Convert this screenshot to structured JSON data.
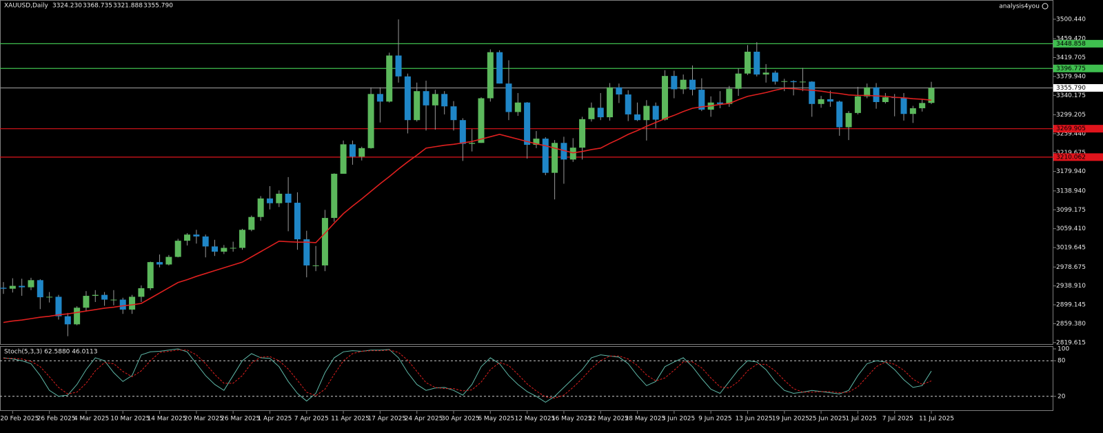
{
  "watermark": "analysis4you",
  "chart_data": [
    {
      "type": "candlestick",
      "title": "XAUUSD,Daily",
      "ohlc_labels": [
        "3324.230",
        "3368.735",
        "3321.888",
        "3355.790"
      ],
      "categories": [
        null,
        "20 Feb 2025",
        null,
        null,
        null,
        "26 Feb 2025",
        null,
        null,
        null,
        "4 Mar 2025",
        null,
        null,
        null,
        "10 Mar 2025",
        null,
        null,
        null,
        "14 Mar 2025",
        null,
        null,
        null,
        "20 Mar 2025",
        null,
        null,
        null,
        "26 Mar 2025",
        null,
        null,
        null,
        "1 Apr 2025",
        null,
        null,
        null,
        "7 Apr 2025",
        null,
        null,
        null,
        "11 Apr 2025",
        null,
        null,
        null,
        "17 Apr 2025",
        null,
        null,
        null,
        "24 Apr 2025",
        null,
        null,
        null,
        "30 Apr 2025",
        null,
        null,
        null,
        "6 May 2025",
        null,
        null,
        null,
        "12 May 2025",
        null,
        null,
        null,
        "16 May 2025",
        null,
        null,
        null,
        "22 May 2025",
        null,
        null,
        null,
        "28 May 2025",
        null,
        null,
        null,
        "3 Jun 2025",
        null,
        null,
        null,
        "9 Jun 2025",
        null,
        null,
        null,
        "13 Jun 2025",
        null,
        null,
        null,
        "19 Jun 2025",
        null,
        null,
        null,
        "25 Jun 2025",
        null,
        null,
        null,
        "1 Jul 2025",
        null,
        null,
        null,
        "7 Jul 2025",
        null,
        null,
        null,
        "11 Jul 2025"
      ],
      "open": [
        2935,
        2933,
        2939,
        2936,
        2951,
        2915,
        2916,
        2875,
        2858,
        2893,
        2918,
        2920,
        2910,
        2910,
        2889,
        2916,
        2934,
        2989,
        2984,
        3000,
        3034,
        3047,
        3043,
        3022,
        3011,
        3019,
        3019,
        3057,
        3084,
        3123,
        3113,
        3133,
        3114,
        3037,
        2982,
        2982,
        3082,
        3175,
        3237,
        3211,
        3229,
        3343,
        3327,
        3424,
        3380,
        3288,
        3349,
        3319,
        3343,
        3317,
        3288,
        3238,
        3240,
        3334,
        3431,
        3365,
        3305,
        3325,
        3236,
        3249,
        3177,
        3240,
        3205,
        3230,
        3290,
        3314,
        3294,
        3357,
        3342,
        3300,
        3288,
        3318,
        3289,
        3381,
        3353,
        3373,
        3352,
        3310,
        3325,
        3322,
        3354,
        3386,
        3432,
        3384,
        3388,
        3369,
        3370,
        3368,
        3369,
        3322,
        3332,
        3327,
        3273,
        3303,
        3338,
        3357,
        3326,
        3336,
        3335,
        3301,
        3313,
        3324.23
      ],
      "high": [
        2947,
        2955,
        2954,
        2956,
        2953,
        2926,
        2920,
        2882,
        2896,
        2928,
        2930,
        2926,
        2930,
        2914,
        2920,
        2940,
        2990,
        3005,
        3004,
        3038,
        3050,
        3057,
        3047,
        3036,
        3025,
        3032,
        3059,
        3087,
        3128,
        3149,
        3140,
        3168,
        3136,
        3055,
        3023,
        3099,
        3176,
        3245,
        3245,
        3232,
        3357,
        3357,
        3430,
        3500,
        3386,
        3367,
        3371,
        3352,
        3349,
        3328,
        3292,
        3269,
        3336,
        3437,
        3435,
        3414,
        3345,
        3326,
        3265,
        3252,
        3246,
        3253,
        3250,
        3295,
        3325,
        3345,
        3366,
        3365,
        3351,
        3325,
        3330,
        3325,
        3393,
        3392,
        3384,
        3403,
        3376,
        3338,
        3349,
        3360,
        3397,
        3446,
        3452,
        3406,
        3392,
        3375,
        3372,
        3398,
        3370,
        3339,
        3350,
        3329,
        3307,
        3358,
        3365,
        3366,
        3345,
        3343,
        3345,
        3318,
        3331,
        3368.735
      ],
      "low": [
        2922,
        2925,
        2918,
        2930,
        2890,
        2904,
        2868,
        2833,
        2856,
        2885,
        2905,
        2897,
        2898,
        2880,
        2880,
        2905,
        2930,
        2978,
        2982,
        2999,
        3024,
        3028,
        2999,
        3002,
        3006,
        3011,
        3015,
        3054,
        3076,
        3100,
        3105,
        3054,
        3015,
        2957,
        2970,
        2970,
        3074,
        3175,
        3194,
        3203,
        3228,
        3283,
        3325,
        3367,
        3260,
        3285,
        3266,
        3268,
        3300,
        3266,
        3202,
        3222,
        3240,
        3327,
        3365,
        3288,
        3297,
        3207,
        3229,
        3172,
        3121,
        3154,
        3200,
        3205,
        3285,
        3288,
        3287,
        3324,
        3286,
        3286,
        3245,
        3271,
        3287,
        3334,
        3343,
        3340,
        3307,
        3295,
        3313,
        3316,
        3339,
        3383,
        3380,
        3367,
        3363,
        3349,
        3340,
        3349,
        3295,
        3314,
        3316,
        3255,
        3246,
        3300,
        3334,
        3312,
        3323,
        3296,
        3287,
        3282,
        3306,
        3321.888
      ],
      "close": [
        2933,
        2939,
        2936,
        2951,
        2915,
        2916,
        2875,
        2858,
        2893,
        2918,
        2920,
        2910,
        2910,
        2889,
        2916,
        2934,
        2989,
        2984,
        3000,
        3034,
        3047,
        3043,
        3022,
        3011,
        3019,
        3019,
        3057,
        3084,
        3123,
        3113,
        3133,
        3114,
        3037,
        2982,
        2982,
        3082,
        3175,
        3237,
        3211,
        3229,
        3343,
        3327,
        3424,
        3380,
        3288,
        3349,
        3319,
        3343,
        3317,
        3288,
        3238,
        3240,
        3334,
        3431,
        3365,
        3305,
        3325,
        3236,
        3249,
        3177,
        3240,
        3205,
        3230,
        3290,
        3314,
        3294,
        3357,
        3342,
        3300,
        3288,
        3318,
        3289,
        3381,
        3353,
        3373,
        3352,
        3310,
        3325,
        3322,
        3354,
        3386,
        3432,
        3384,
        3388,
        3369,
        3370,
        3368,
        3369,
        3322,
        3332,
        3327,
        3273,
        3303,
        3338,
        3357,
        3326,
        3336,
        3335,
        3301,
        3313,
        3324,
        3355.79
      ],
      "up_color": "#5cb85c",
      "down_color": "#1f86c7",
      "wick_color": "#9a9a9a",
      "moving_average": {
        "color": "#e0201f",
        "values": [
          2862,
          2865,
          2867,
          2870,
          2873,
          2875,
          2878,
          2880,
          2883,
          2886,
          2889,
          2892,
          2894,
          2897,
          2899,
          2902,
          2913,
          2924,
          2935,
          2946,
          2952,
          2959,
          2965,
          2971,
          2977,
          2983,
          2989,
          3000,
          3011,
          3022,
          3033,
          3032,
          3031,
          3031,
          3030,
          3050,
          3071,
          3091,
          3107,
          3122,
          3138,
          3154,
          3169,
          3185,
          3200,
          3214,
          3229,
          3232,
          3235,
          3237,
          3240,
          3243,
          3248,
          3253,
          3258,
          3253,
          3248,
          3243,
          3238,
          3234,
          3229,
          3224,
          3219,
          3222,
          3226,
          3229,
          3239,
          3248,
          3258,
          3266,
          3275,
          3283,
          3291,
          3298,
          3306,
          3313,
          3316,
          3318,
          3321,
          3323,
          3331,
          3338,
          3342,
          3346,
          3351,
          3355,
          3354,
          3352,
          3351,
          3349,
          3346,
          3344,
          3341,
          3340,
          3340,
          3339,
          3338,
          3336,
          3335,
          3333,
          3332,
          3330
        ]
      },
      "levels": [
        {
          "value": 3448.858,
          "color": "#3fbf4f"
        },
        {
          "value": 3396.775,
          "color": "#3fbf4f"
        },
        {
          "value": 3355.79,
          "label": "3355.790",
          "color": "#8a8a8a"
        },
        {
          "value": 3269.905,
          "color": "#e0141c"
        },
        {
          "value": 3210.062,
          "color": "#e0141c"
        }
      ],
      "ylim": [
        2815,
        3538
      ],
      "yticks": [
        {
          "value": 3500.44,
          "label": "3500.440"
        },
        {
          "value": 3459.42,
          "label": "3459.420"
        },
        {
          "value": 3419.705,
          "label": "3419.705"
        },
        {
          "value": 3379.94,
          "label": "3379.940"
        },
        {
          "value": 3340.175,
          "label": "3340.175"
        },
        {
          "value": 3299.205,
          "label": "3299.205"
        },
        {
          "value": 3259.44,
          "label": "3259.440"
        },
        {
          "value": 3219.675,
          "label": "3219.675"
        },
        {
          "value": 3179.94,
          "label": "3179.940"
        },
        {
          "value": 3138.94,
          "label": "3138.940"
        },
        {
          "value": 3099.175,
          "label": "3099.175"
        },
        {
          "value": 3059.41,
          "label": "3059.410"
        },
        {
          "value": 3019.645,
          "label": "3019.645"
        },
        {
          "value": 2978.675,
          "label": "2978.675"
        },
        {
          "value": 2938.91,
          "label": "2938.910"
        },
        {
          "value": 2899.145,
          "label": "2899.145"
        },
        {
          "value": 2859.38,
          "label": "2859.380"
        },
        {
          "value": 2819.615,
          "label": "2819.615"
        }
      ]
    },
    {
      "type": "line",
      "title": "Stoch(5,3,3) 62.5880 46.0113",
      "ylim": [
        0,
        100
      ],
      "yticks": [
        20,
        80,
        100
      ],
      "levels": [
        80,
        20
      ],
      "series": [
        {
          "color": "#5fb8a8",
          "dash": false,
          "values": [
            85,
            83,
            80,
            75,
            55,
            30,
            20,
            22,
            40,
            65,
            85,
            80,
            60,
            45,
            55,
            90,
            95,
            96,
            98,
            100,
            95,
            75,
            55,
            40,
            30,
            55,
            80,
            92,
            85,
            84,
            70,
            45,
            25,
            12,
            25,
            60,
            85,
            95,
            97,
            96,
            98,
            98,
            99,
            85,
            60,
            40,
            30,
            34,
            35,
            30,
            22,
            40,
            70,
            85,
            75,
            55,
            40,
            28,
            20,
            10,
            20,
            35,
            50,
            65,
            85,
            90,
            88,
            86,
            75,
            55,
            38,
            45,
            70,
            78,
            85,
            70,
            50,
            32,
            25,
            45,
            65,
            80,
            78,
            65,
            45,
            30,
            25,
            27,
            30,
            28,
            26,
            24,
            30,
            55,
            75,
            80,
            78,
            65,
            48,
            35,
            38,
            62.588
          ]
        },
        {
          "color": "#e0201f",
          "dash": true,
          "values": [
            84,
            84,
            83,
            79,
            70,
            53,
            35,
            24,
            27,
            42,
            63,
            77,
            75,
            62,
            53,
            63,
            80,
            94,
            96,
            98,
            98,
            90,
            75,
            57,
            42,
            42,
            55,
            76,
            86,
            87,
            80,
            66,
            47,
            27,
            21,
            32,
            57,
            80,
            92,
            96,
            97,
            97,
            98,
            94,
            81,
            62,
            43,
            35,
            33,
            33,
            29,
            31,
            44,
            65,
            77,
            72,
            57,
            41,
            29,
            19,
            17,
            22,
            35,
            50,
            67,
            80,
            88,
            88,
            83,
            72,
            56,
            46,
            51,
            64,
            78,
            78,
            68,
            51,
            36,
            34,
            45,
            63,
            74,
            74,
            63,
            47,
            33,
            27,
            27,
            28,
            28,
            26,
            27,
            36,
            53,
            70,
            78,
            74,
            64,
            49,
            40,
            46.0113
          ]
        }
      ]
    }
  ]
}
